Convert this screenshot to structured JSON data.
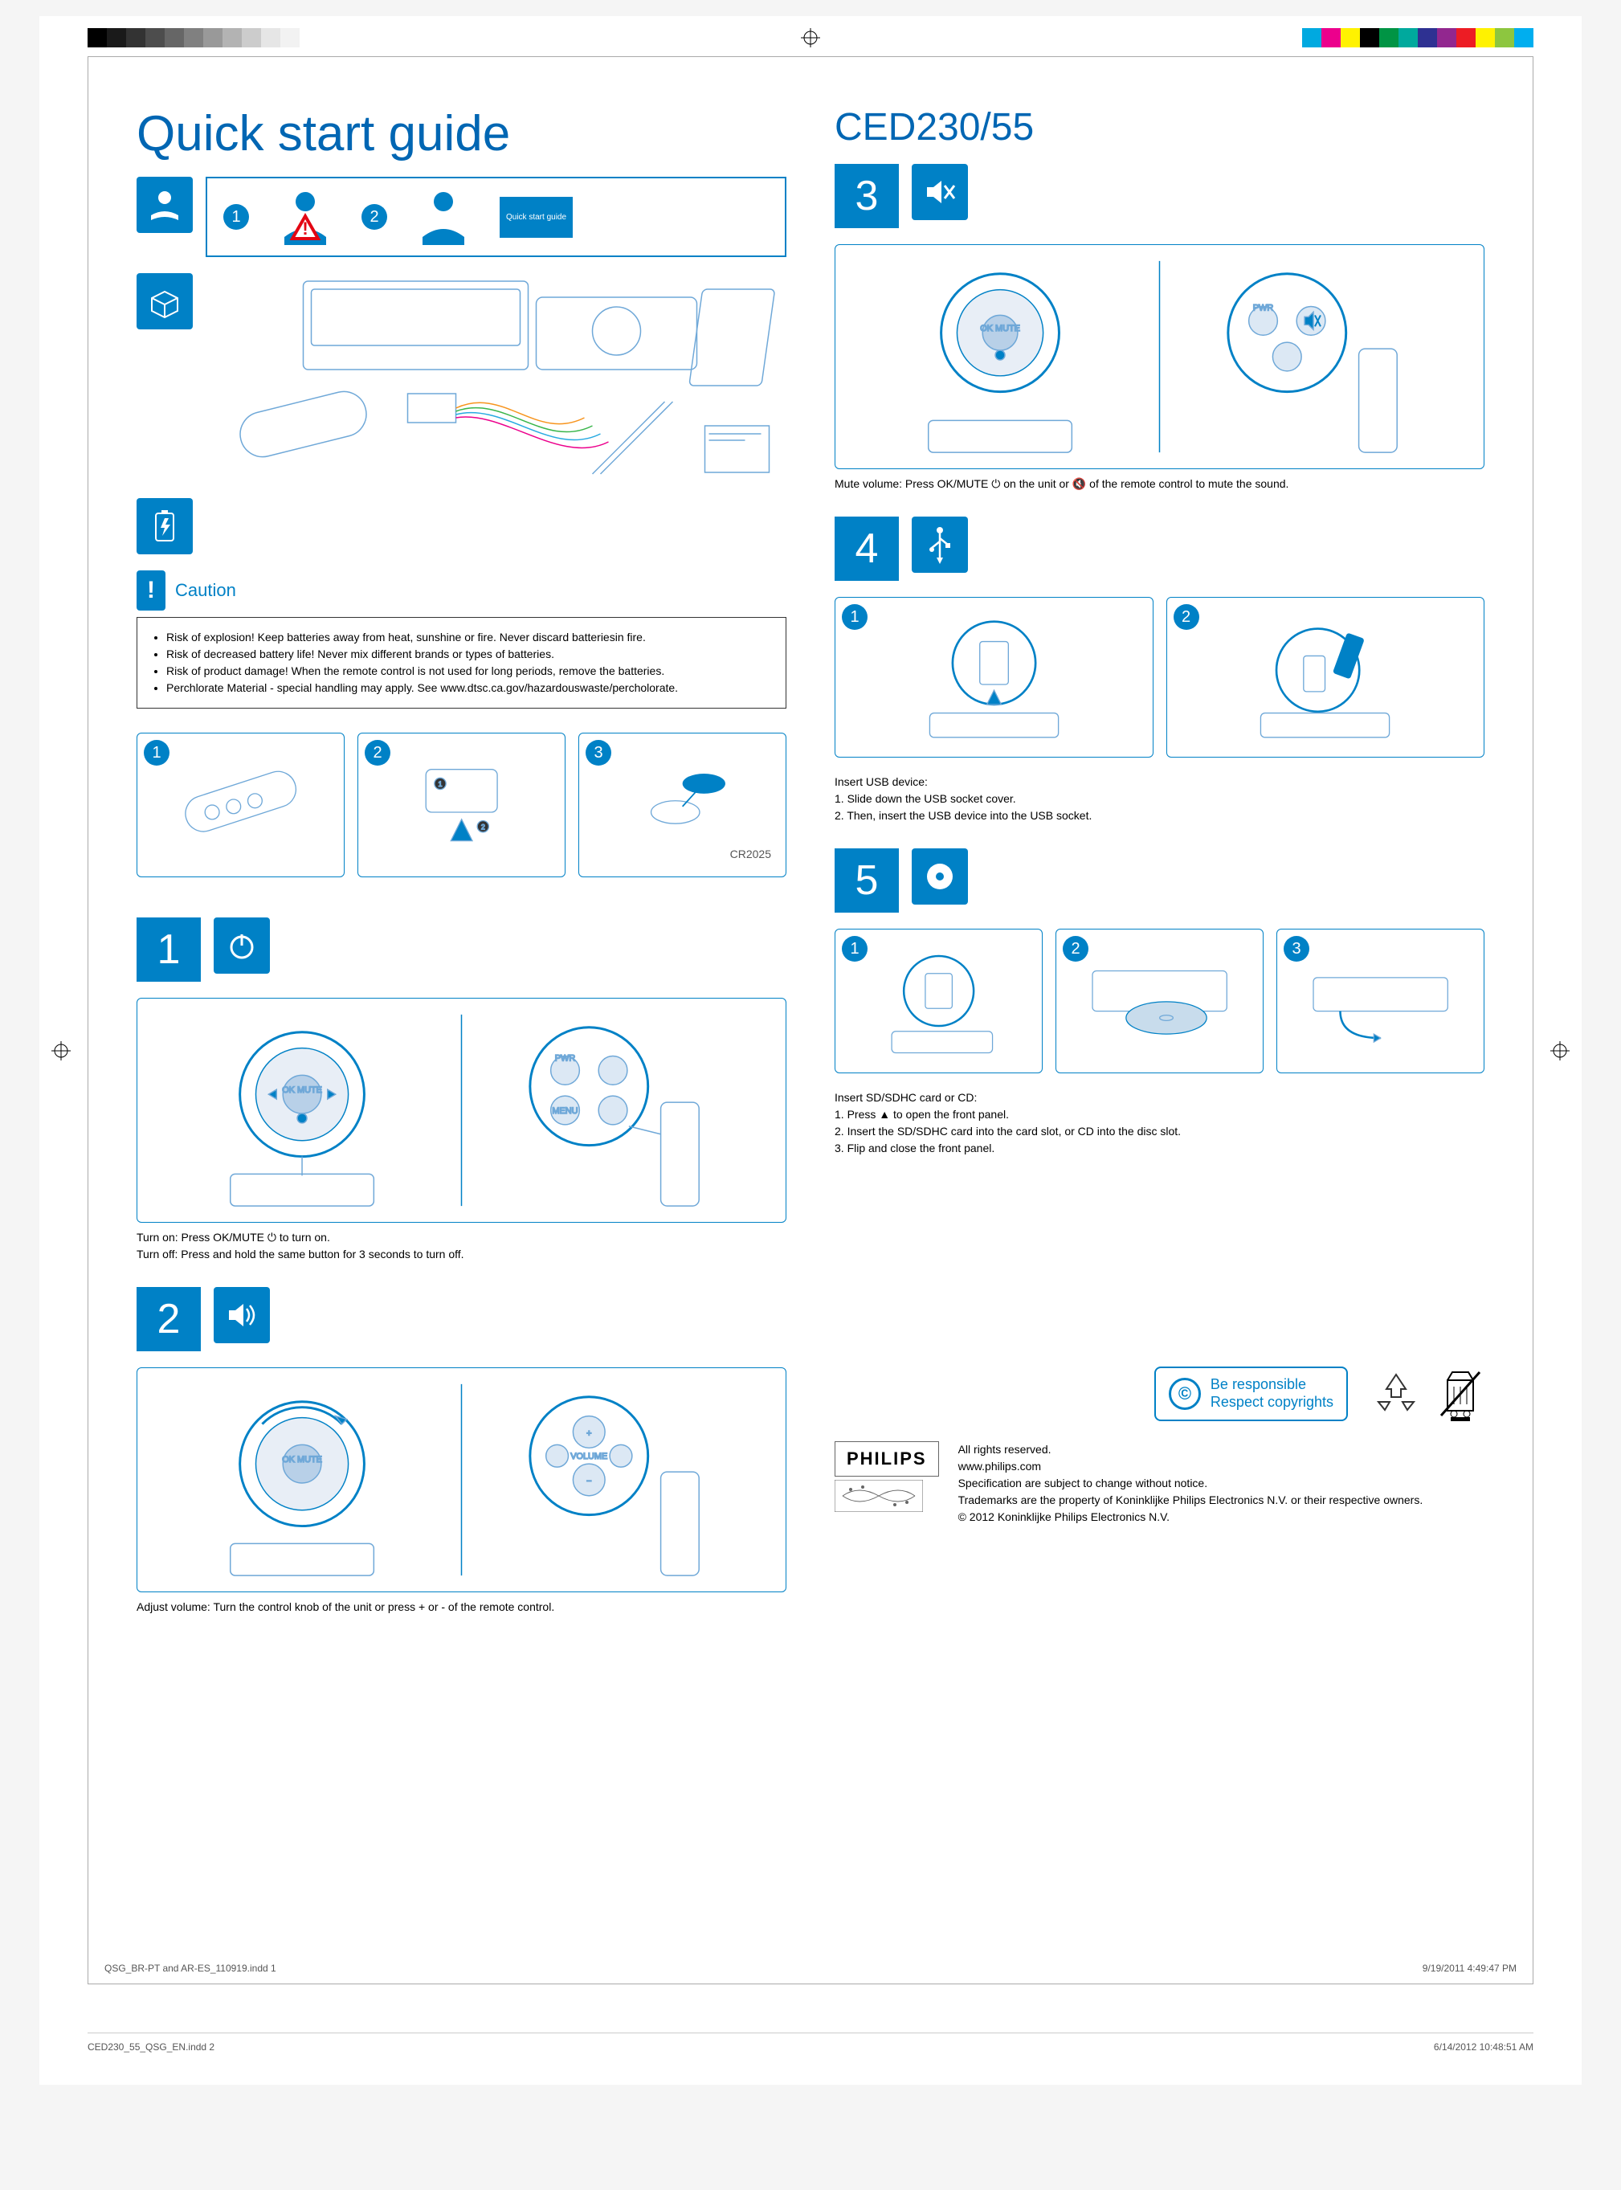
{
  "print": {
    "gray_swatches": [
      "#000000",
      "#1a1a1a",
      "#333333",
      "#4d4d4d",
      "#666666",
      "#808080",
      "#999999",
      "#b3b3b3",
      "#cccccc",
      "#e6e6e6",
      "#f2f2f2",
      "#ffffff"
    ],
    "color_swatches": [
      "#00a9e0",
      "#ec008c",
      "#fff200",
      "#000000",
      "#009444",
      "#00a99d",
      "#2e3192",
      "#92278f",
      "#ed1c24",
      "#fff200",
      "#8dc63f",
      "#00aeef"
    ],
    "footer_left_inner": "QSG_BR-PT and AR-ES_110919.indd   1",
    "footer_right_inner": "9/19/2011   4:49:47 PM",
    "footer_left_outer": "CED230_55_QSG_EN.indd   2",
    "footer_right_outer": "6/14/2012   10:48:51 AM"
  },
  "colors": {
    "brand_blue": "#0066b3",
    "icon_blue": "#0081c6"
  },
  "left": {
    "title": "Quick start guide",
    "header_label": "Quick start guide",
    "caution_title": "Caution",
    "caution_bullets": [
      "Risk of explosion! Keep batteries away from heat, sunshine or fire. Never discard batteriesin fire.",
      "Risk of decreased battery life! Never mix different brands or types of batteries.",
      "Risk of product damage! When the remote control is not used for long periods, remove the batteries.",
      "Perchlorate Material - special handling may apply. See www.dtsc.ca.gov/hazardouswaste/percholorate."
    ],
    "battery_label": "CR2025",
    "step1_caption": "Turn on: Press OK/MUTE ⏻ to turn on.\nTurn off: Press and hold the same button for 3 seconds to turn off.",
    "step1_labels": {
      "pwr": "PWR",
      "menu": "MENU",
      "ok": "OK MUTE"
    },
    "step2_caption": "Adjust volume: Turn the control knob of the unit or press + or - of the remote control.",
    "step2_labels": {
      "volume": "VOLUME",
      "plus": "+",
      "ok": "OK MUTE"
    }
  },
  "right": {
    "model": "CED230/55",
    "step3_caption": "Mute volume: Press OK/MUTE ⏻ on the unit or 🔇 of the remote control to mute the sound.",
    "step3_labels": {
      "pwr": "PWR",
      "ok": "OK MUTE"
    },
    "step4_caption": "Insert USB device:\n1. Slide down the USB socket cover.\n2. Then, insert the USB device into the USB socket.",
    "step5_caption": "Insert SD/SDHC card or CD:\n1. Press ▲  to open the front panel.\n2. Insert the SD/SDHC card into the card slot, or CD into the disc slot.\n3. Flip and close the front panel.",
    "copyright_box": "Be responsible\nRespect copyrights",
    "legal": "All rights reserved.\nwww.philips.com\nSpecification are subject to change without notice.\nTrademarks are the property of Koninklijke Philips Electronics N.V. or their respective owners.\n© 2012 Koninklijke Philips Electronics N.V.",
    "brand": "PHILIPS"
  }
}
